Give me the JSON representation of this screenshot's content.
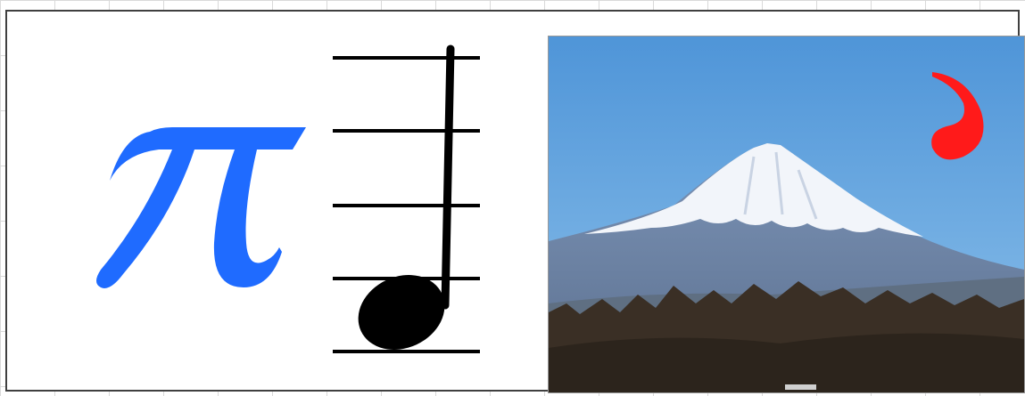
{
  "canvas": {
    "background": "#ffffff",
    "gridline_color": "#d9d9d9",
    "frame_border_color": "#404040"
  },
  "pi_symbol": {
    "glyph": "π",
    "color": "#1f6bff"
  },
  "music_note": {
    "type": "quarter-note",
    "staff_lines": 5,
    "color": "#000000"
  },
  "photo": {
    "subject": "snow-capped-mountain",
    "sky_color": "#6aa9e0",
    "snow_color": "#f2f5fa",
    "mountain_color": "#6f87a8",
    "forest_color": "#3a2f25",
    "mark": {
      "shape": "apostrophe-mark",
      "color": "#ff0000"
    }
  }
}
